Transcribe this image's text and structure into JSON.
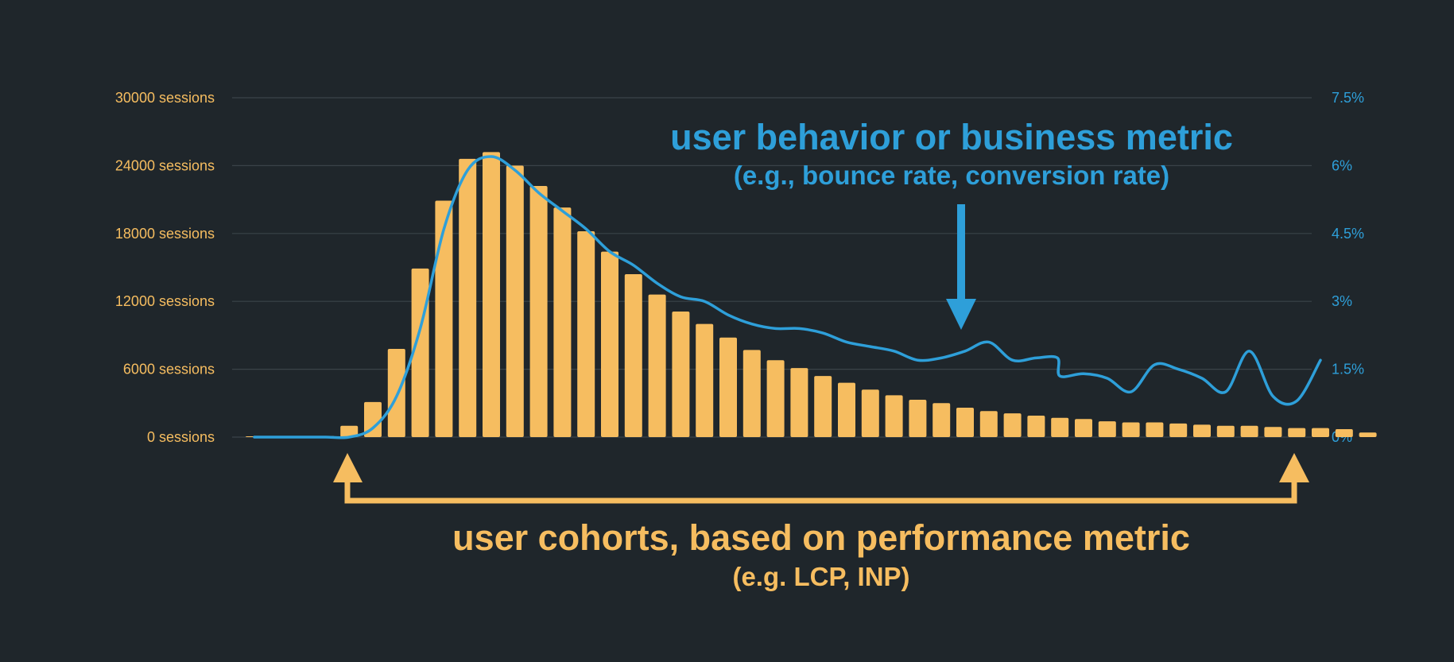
{
  "chart_data": {
    "type": "bar",
    "left_axis": {
      "ticks": [
        "30000 sessions",
        "24000 sessions",
        "18000 sessions",
        "12000 sessions",
        "6000 sessions",
        "0 sessions"
      ],
      "ylim": [
        0,
        30000
      ]
    },
    "right_axis": {
      "ticks": [
        "7.5%",
        "6%",
        "4.5%",
        "3%",
        "1.5%",
        "0%"
      ],
      "ylim": [
        0,
        7.5
      ]
    },
    "grid": true,
    "x": [
      0,
      1,
      2,
      3,
      4,
      5,
      6,
      7,
      8,
      9,
      10,
      11,
      12,
      13,
      14,
      15,
      16,
      17,
      18,
      19,
      20,
      21,
      22,
      23,
      24,
      25,
      26,
      27,
      28,
      29,
      30,
      31,
      32,
      33,
      33.9,
      34,
      35,
      36,
      37,
      38,
      39,
      40,
      41,
      42,
      43,
      44,
      45,
      46,
      47,
      48,
      49
    ],
    "series": [
      {
        "kind": "bar",
        "axis": "left",
        "color": "#f6bd60",
        "values": [
          0,
          0,
          0,
          100,
          1000,
          3100,
          7800,
          14900,
          20900,
          24600,
          25200,
          24000,
          22200,
          20300,
          18200,
          16400,
          14400,
          12600,
          11100,
          10000,
          8800,
          7700,
          6800,
          6100,
          5400,
          4800,
          4200,
          3700,
          3300,
          3000,
          2600,
          2300,
          2100,
          1900,
          null,
          1700,
          1600,
          1400,
          1300,
          1300,
          1200,
          1100,
          1000,
          1000,
          900,
          800,
          800,
          700,
          400,
          null,
          null
        ]
      },
      {
        "kind": "line",
        "axis": "right",
        "color": "#2e9fd9",
        "values": [
          0,
          0,
          0,
          0,
          0,
          0.2,
          0.9,
          2.4,
          4.6,
          5.9,
          6.2,
          5.9,
          5.4,
          5,
          4.6,
          4.1,
          3.8,
          3.4,
          3.1,
          3,
          2.7,
          2.5,
          2.4,
          2.4,
          2.3,
          2.1,
          2,
          1.9,
          1.7,
          1.75,
          1.9,
          2.1,
          1.7,
          1.75,
          1.75,
          1.35,
          1.4,
          1.3,
          1,
          1.6,
          1.5,
          1.3,
          1,
          1.9,
          0.9,
          0.8,
          1.7,
          null,
          null,
          null,
          null
        ]
      }
    ]
  },
  "annotations": {
    "metric_title": "user behavior or business metric",
    "metric_subtitle": "(e.g., bounce rate, conversion rate)",
    "cohort_title": "user cohorts, based on performance metric",
    "cohort_subtitle": "(e.g. LCP, INP)"
  }
}
